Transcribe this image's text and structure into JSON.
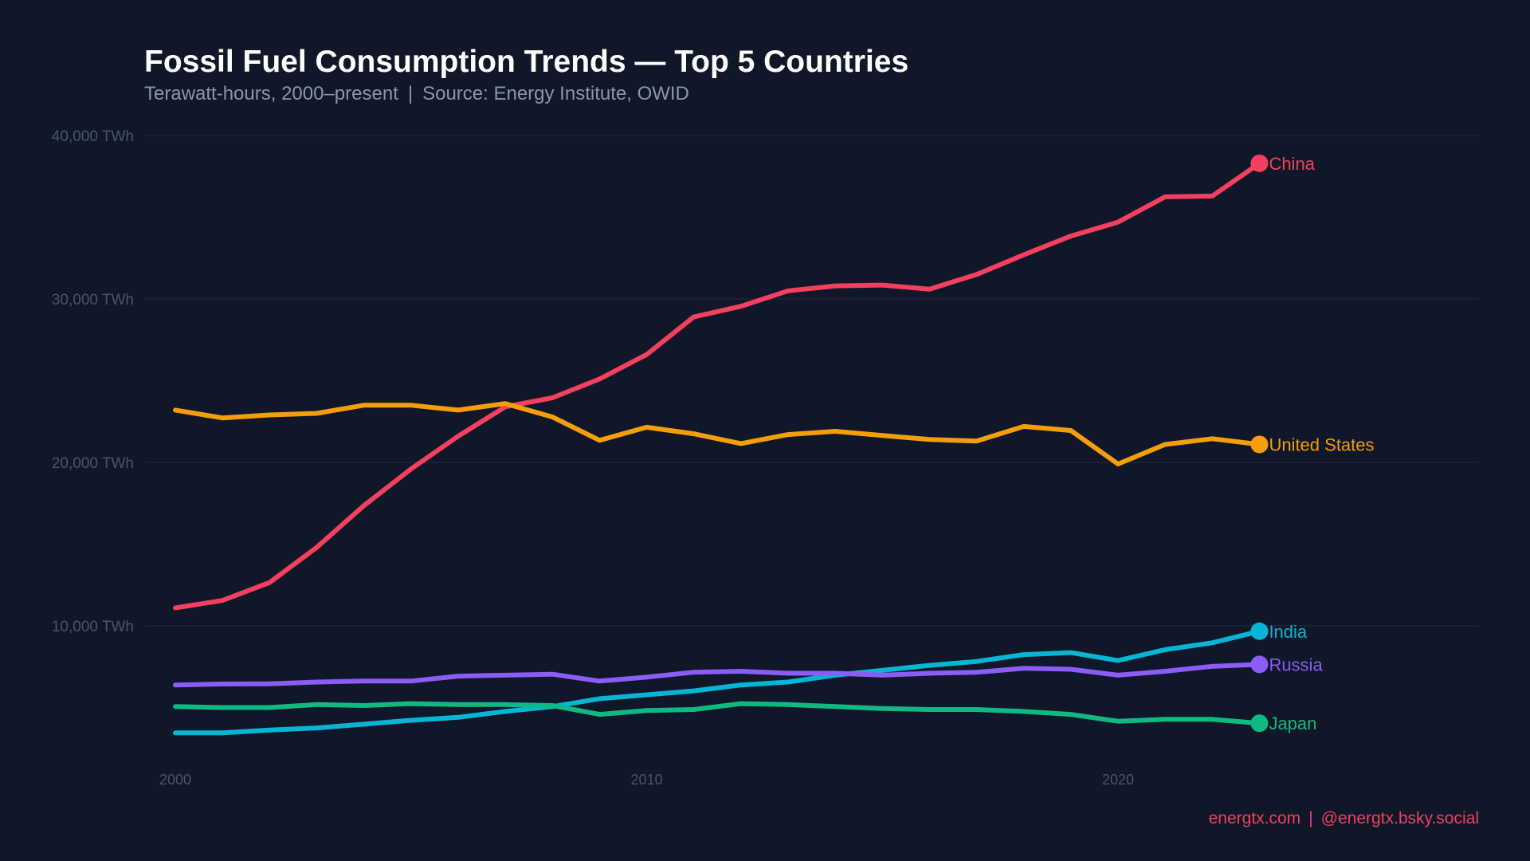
{
  "title": "Fossil Fuel Consumption Trends — Top 5 Countries",
  "subtitle": {
    "left": "Terawatt-hours, 2000–present",
    "separator": "|",
    "right": "Source: Energy Institute, OWID"
  },
  "footer": {
    "site": "energtx.com",
    "separator": "|",
    "social": "@energtx.bsky.social"
  },
  "chart_data": {
    "type": "line",
    "title": "Fossil Fuel Consumption Trends — Top 5 Countries",
    "xlabel": "",
    "ylabel": "",
    "ylim": [
      0,
      40000
    ],
    "xlim": [
      2000,
      2028
    ],
    "grid": true,
    "legend": "end-of-line labels",
    "y_ticks": [
      {
        "value": 10000,
        "label": "10,000 TWh"
      },
      {
        "value": 20000,
        "label": "20,000 TWh"
      },
      {
        "value": 30000,
        "label": "30,000 TWh"
      },
      {
        "value": 40000,
        "label": "40,000 TWh"
      }
    ],
    "x_ticks": [
      {
        "value": 2000,
        "label": "2000"
      },
      {
        "value": 2010,
        "label": "2010"
      },
      {
        "value": 2020,
        "label": "2020"
      }
    ],
    "x": [
      2000,
      2001,
      2002,
      2003,
      2004,
      2005,
      2006,
      2007,
      2008,
      2009,
      2010,
      2011,
      2012,
      2013,
      2014,
      2015,
      2016,
      2017,
      2018,
      2019,
      2020,
      2021,
      2022,
      2023
    ],
    "series": [
      {
        "name": "China",
        "color": "#f43f5e",
        "values": [
          11100,
          11550,
          12650,
          14800,
          17350,
          19600,
          21600,
          23400,
          23950,
          25100,
          26600,
          28900,
          29550,
          30500,
          30800,
          30850,
          30600,
          31500,
          32700,
          33850,
          34700,
          36250,
          36300,
          38300
        ]
      },
      {
        "name": "United States",
        "color": "#f59e0b",
        "values": [
          23200,
          22720,
          22900,
          23000,
          23500,
          23500,
          23200,
          23600,
          22780,
          21350,
          22150,
          21750,
          21150,
          21700,
          21900,
          21650,
          21400,
          21300,
          22200,
          21950,
          19900,
          21100,
          21450,
          21100
        ]
      },
      {
        "name": "India",
        "color": "#06b6d4",
        "values": [
          3450,
          3450,
          3620,
          3750,
          3980,
          4220,
          4400,
          4760,
          5060,
          5540,
          5780,
          6020,
          6380,
          6560,
          6980,
          7280,
          7580,
          7820,
          8240,
          8360,
          7880,
          8540,
          8960,
          9670
        ]
      },
      {
        "name": "Russia",
        "color": "#8b5cf6",
        "values": [
          6380,
          6440,
          6450,
          6560,
          6620,
          6620,
          6920,
          6980,
          7040,
          6620,
          6860,
          7160,
          7220,
          7100,
          7100,
          6980,
          7100,
          7160,
          7400,
          7340,
          6980,
          7220,
          7520,
          7640
        ]
      },
      {
        "name": "Japan",
        "color": "#10b981",
        "values": [
          5060,
          5000,
          5000,
          5180,
          5120,
          5240,
          5180,
          5180,
          5120,
          4580,
          4820,
          4880,
          5240,
          5180,
          5060,
          4940,
          4880,
          4880,
          4760,
          4580,
          4160,
          4280,
          4280,
          4040
        ]
      }
    ]
  }
}
